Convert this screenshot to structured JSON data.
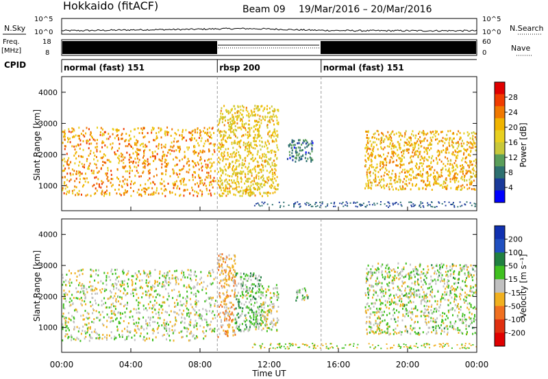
{
  "header": {
    "station": "Hokkaido (fitACF)",
    "beam": "Beam 09",
    "date_range": "19/Mar/2016 – 20/Mar/2016"
  },
  "noise_panel": {
    "left_label": "N.Sky",
    "left_ticks": [
      "10^5",
      "10^0"
    ],
    "right_ticks": [
      "10^5",
      "10^0"
    ],
    "right_label": "N.Search"
  },
  "freq_panel": {
    "left_label": "Freq.",
    "left_unit": "[MHz]",
    "left_ticks": [
      "18",
      "8"
    ],
    "right_ticks": [
      "60",
      "0"
    ],
    "right_label": "Nave",
    "cpid_label": "CPID"
  },
  "cpid_segments": [
    {
      "label": "normal (fast) 151",
      "start": 0,
      "end": 9
    },
    {
      "label": "rbsp 200",
      "start": 9,
      "end": 15
    },
    {
      "label": "normal (fast) 151",
      "start": 15,
      "end": 24
    }
  ],
  "x_axis": {
    "label": "Time UT",
    "ticks": [
      "00:00",
      "04:00",
      "08:00",
      "12:00",
      "16:00",
      "20:00",
      "00:00"
    ]
  },
  "power_colorbar": {
    "label": "Power [dB]",
    "ticks": [
      "28",
      "24",
      "20",
      "16",
      "12",
      "8",
      "4"
    ],
    "colors": [
      "#e00000",
      "#f03c00",
      "#f07800",
      "#f0b400",
      "#e8d020",
      "#c8c83a",
      "#5a9e5a",
      "#2e7070",
      "#1a3a9a",
      "#0000ff"
    ]
  },
  "velocity_colorbar": {
    "label": "Velocity [m s⁻¹]",
    "ticks": [
      "200",
      "100",
      "50",
      "15",
      "-15",
      "-50",
      "-100",
      "-200"
    ],
    "colors": [
      "#1030b0",
      "#2050c0",
      "#208040",
      "#40c020",
      "#c0c0c0",
      "#f0b020",
      "#f07020",
      "#e03010",
      "#e00000"
    ]
  },
  "chart_data": [
    {
      "type": "heatmap",
      "title": "Power",
      "ylabel": "Slant Range [km]",
      "xlabel": "",
      "xlim": [
        0,
        24
      ],
      "ylim": [
        200,
        4500
      ],
      "yticks": [
        1000,
        2000,
        3000,
        4000
      ],
      "regions": [
        {
          "x": [
            0,
            8.9
          ],
          "y": [
            700,
            2900
          ],
          "value_db": 24
        },
        {
          "x": [
            9.0,
            12.5
          ],
          "y": [
            700,
            3600
          ],
          "value_db": 20
        },
        {
          "x": [
            13.0,
            14.5
          ],
          "y": [
            1800,
            2500
          ],
          "value_db": 10
        },
        {
          "x": [
            17.5,
            24
          ],
          "y": [
            900,
            2800
          ],
          "value_db": 22
        }
      ]
    },
    {
      "type": "heatmap",
      "title": "Velocity",
      "ylabel": "Slant Range [km]",
      "xlabel": "Time UT",
      "xlim": [
        0,
        24
      ],
      "ylim": [
        200,
        4500
      ],
      "yticks": [
        1000,
        2000,
        3000,
        4000
      ],
      "regions": [
        {
          "x": [
            0,
            8.9
          ],
          "y": [
            600,
            2900
          ],
          "value_ms": 0
        },
        {
          "x": [
            9.0,
            10.0
          ],
          "y": [
            700,
            3400
          ],
          "value_ms": -50
        },
        {
          "x": [
            10.0,
            11.5
          ],
          "y": [
            900,
            2800
          ],
          "value_ms": 40
        },
        {
          "x": [
            11.5,
            12.5
          ],
          "y": [
            900,
            2400
          ],
          "value_ms": 0
        },
        {
          "x": [
            13.5,
            14.3
          ],
          "y": [
            1900,
            2300
          ],
          "value_ms": 40
        },
        {
          "x": [
            17.5,
            24
          ],
          "y": [
            800,
            3100
          ],
          "value_ms": 10
        }
      ]
    }
  ]
}
